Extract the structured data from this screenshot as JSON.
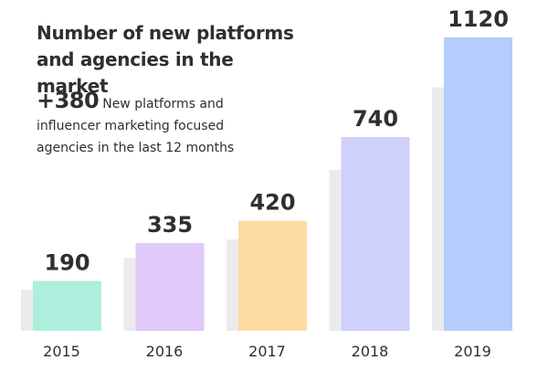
{
  "chart_data": {
    "type": "bar",
    "title": "Number of new platforms and agencies in the market",
    "categories": [
      "2015",
      "2016",
      "2017",
      "2018",
      "2019"
    ],
    "values": [
      190,
      335,
      420,
      740,
      1120
    ],
    "value_labels": [
      "190",
      "335",
      "420",
      "740",
      "1120"
    ],
    "bar_colors": [
      "#aeeedd",
      "#e1c9fa",
      "#fddba2",
      "#cfd0fb",
      "#b3cdfc"
    ],
    "shadow_color": "#ebebeb",
    "ylim": [
      0,
      1120
    ],
    "grid": false,
    "annotation": {
      "value": "+380",
      "text": "New platforms and influencer marketing focused agencies in the last 12 months"
    }
  }
}
